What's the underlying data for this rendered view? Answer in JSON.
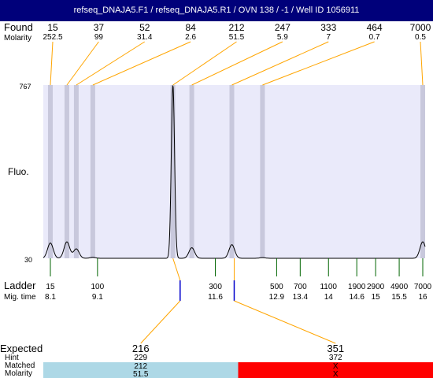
{
  "title": "refseq_DNAJA5.F1 / refseq_DNAJA5.R1 / OVN 138 / -1 / Well ID 1056911",
  "labels": {
    "found": "Found",
    "molarity": "Molarity",
    "fluo": "Fluo.",
    "ladder": "Ladder",
    "mig_time": "Mig. time",
    "expected": "Expected",
    "hint": "Hint",
    "matched": "Matched",
    "molarity_row": "Molarity",
    "y_max": "767",
    "y_min": "30"
  },
  "colors": {
    "title_bar": "#00007a",
    "plot_bg": "#eaeafa",
    "peak_band": "#c8c8dc",
    "ladder_tick": "#006400",
    "callout_line": "#ffa500",
    "expected_marker": "#0000cc",
    "matched_fill": "#add8e6",
    "unmatched_fill": "#ff0000"
  },
  "chart_data": {
    "type": "line",
    "title": "refseq_DNAJA5.F1 / refseq_DNAJA5.R1 / OVN 138 / -1 / Well ID 1056911",
    "ylabel": "Fluo.",
    "xlabel": "",
    "ylim": [
      30,
      767
    ],
    "x_axis": "ladder_size_bp",
    "found_peaks": [
      {
        "size": "15",
        "molarity": "252.5",
        "mig_time": 8.1
      },
      {
        "size": "37",
        "molarity": "99",
        "mig_time": 8.45
      },
      {
        "size": "52",
        "molarity": "31.4",
        "mig_time": 8.65
      },
      {
        "size": "84",
        "molarity": "2.6",
        "mig_time": 9.0
      },
      {
        "size": "212",
        "molarity": "51.5",
        "mig_time": 10.7
      },
      {
        "size": "247",
        "molarity": "5.9",
        "mig_time": 11.1
      },
      {
        "size": "333",
        "molarity": "7",
        "mig_time": 11.95
      },
      {
        "size": "464",
        "molarity": "0.7",
        "mig_time": 12.6
      },
      {
        "size": "7000",
        "molarity": "0.5",
        "mig_time": 16.0
      }
    ],
    "ladder": [
      {
        "size": "15",
        "mig_time": "8.1"
      },
      {
        "size": "100",
        "mig_time": "9.1"
      },
      {
        "size": "300",
        "mig_time": "11.6"
      },
      {
        "size": "500",
        "mig_time": "12.9"
      },
      {
        "size": "700",
        "mig_time": "13.4"
      },
      {
        "size": "1100",
        "mig_time": "14"
      },
      {
        "size": "1900",
        "mig_time": "14.6"
      },
      {
        "size": "2900",
        "mig_time": "15"
      },
      {
        "size": "4900",
        "mig_time": "15.5"
      },
      {
        "size": "7000",
        "mig_time": "16"
      }
    ],
    "trace": [
      {
        "mig_time": 8.1,
        "fluo": 95
      },
      {
        "mig_time": 8.45,
        "fluo": 100
      },
      {
        "mig_time": 8.65,
        "fluo": 70
      },
      {
        "mig_time": 9.0,
        "fluo": 34
      },
      {
        "mig_time": 10.7,
        "fluo": 767
      },
      {
        "mig_time": 11.1,
        "fluo": 75
      },
      {
        "mig_time": 11.95,
        "fluo": 88
      },
      {
        "mig_time": 12.6,
        "fluo": 33
      },
      {
        "mig_time": 16.0,
        "fluo": 100
      }
    ],
    "expected": [
      {
        "size": "216",
        "hint": "229",
        "matched": "212",
        "molarity": "51.5",
        "status": "matched"
      },
      {
        "size": "351",
        "hint": "372",
        "matched": "X",
        "molarity": "X",
        "status": "unmatched"
      }
    ]
  }
}
